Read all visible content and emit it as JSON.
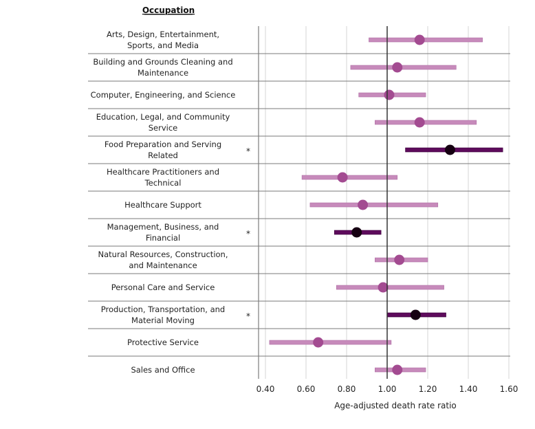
{
  "chart_data": {
    "type": "forest",
    "column_header": "Occupation",
    "xlabel": "Age-adjusted death rate ratio",
    "xlim": [
      0.37,
      1.64
    ],
    "reference_line": 1.0,
    "ticks": [
      "0.40",
      "0.60",
      "0.80",
      "1.00",
      "1.20",
      "1.40",
      "1.60"
    ],
    "tick_values": [
      0.4,
      0.6,
      0.8,
      1.0,
      1.2,
      1.4,
      1.6
    ],
    "grid": true,
    "significance_marker": "*",
    "colors": {
      "ci_normal": "#c78bbb",
      "point_normal": "#a34b91",
      "ci_significant": "#5e0b5c",
      "point_significant": "#160012",
      "reference": "#333333",
      "row_divider": "#7a7a7a",
      "gridline": "#e3e3e3"
    },
    "rows": [
      {
        "label": [
          "Arts, Design, Entertainment,",
          "Sports, and Media"
        ],
        "ratio": 1.16,
        "lower": 0.91,
        "upper": 1.47,
        "significant": false
      },
      {
        "label": [
          "Building and Grounds Cleaning and",
          "Maintenance"
        ],
        "ratio": 1.05,
        "lower": 0.82,
        "upper": 1.34,
        "significant": false
      },
      {
        "label": [
          "Computer, Engineering, and Science"
        ],
        "ratio": 1.01,
        "lower": 0.86,
        "upper": 1.19,
        "significant": false
      },
      {
        "label": [
          "Education, Legal, and Community",
          "Service"
        ],
        "ratio": 1.16,
        "lower": 0.94,
        "upper": 1.44,
        "significant": false
      },
      {
        "label": [
          "Food Preparation and Serving",
          "Related"
        ],
        "ratio": 1.31,
        "lower": 1.09,
        "upper": 1.57,
        "significant": true
      },
      {
        "label": [
          "Healthcare Practitioners and",
          "Technical"
        ],
        "ratio": 0.78,
        "lower": 0.58,
        "upper": 1.05,
        "significant": false
      },
      {
        "label": [
          "Healthcare Support"
        ],
        "ratio": 0.88,
        "lower": 0.62,
        "upper": 1.25,
        "significant": false
      },
      {
        "label": [
          "Management, Business, and",
          "Financial"
        ],
        "ratio": 0.85,
        "lower": 0.74,
        "upper": 0.97,
        "significant": true
      },
      {
        "label": [
          "Natural Resources, Construction,",
          "and Maintenance"
        ],
        "ratio": 1.06,
        "lower": 0.94,
        "upper": 1.2,
        "significant": false
      },
      {
        "label": [
          "Personal Care and Service"
        ],
        "ratio": 0.98,
        "lower": 0.75,
        "upper": 1.28,
        "significant": false
      },
      {
        "label": [
          "Production, Transportation, and",
          "Material Moving"
        ],
        "ratio": 1.14,
        "lower": 1.0,
        "upper": 1.29,
        "significant": true
      },
      {
        "label": [
          "Protective Service"
        ],
        "ratio": 0.66,
        "lower": 0.42,
        "upper": 1.02,
        "significant": false
      },
      {
        "label": [
          "Sales and Office"
        ],
        "ratio": 1.05,
        "lower": 0.94,
        "upper": 1.19,
        "significant": false
      }
    ]
  }
}
